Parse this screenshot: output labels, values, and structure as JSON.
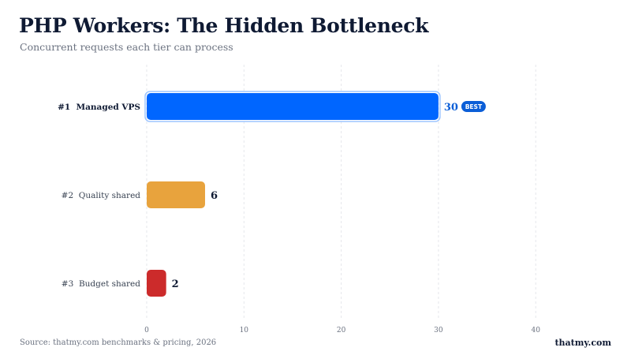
{
  "header": {
    "title": "PHP Workers: The Hidden Bottleneck",
    "subtitle": "Concurrent requests each tier can process"
  },
  "footer": {
    "source": "Source: thatmy.com benchmarks & pricing, 2026",
    "brand": "thatmy.com"
  },
  "colors": {
    "managed_vps": "#0066ff",
    "quality_shared": "#e8a33d",
    "budget_shared": "#cc2b2b",
    "badge_bg": "#0b5ed7",
    "grid": "#e5e7eb",
    "highlight_value": "#0b5ed7"
  },
  "chart_data": {
    "type": "bar",
    "orientation": "horizontal",
    "categories": [
      "Managed VPS",
      "Quality shared",
      "Budget shared"
    ],
    "ranks": [
      "#1",
      "#2",
      "#3"
    ],
    "values": [
      30,
      6,
      2
    ],
    "value_labels": [
      "30",
      "6",
      "2"
    ],
    "badge": {
      "category": "Managed VPS",
      "text": "BEST"
    },
    "xlim": [
      0,
      40
    ],
    "xticks": [
      "0",
      "10",
      "20",
      "30",
      "40"
    ],
    "grid": true,
    "title": "PHP Workers: The Hidden Bottleneck",
    "subtitle": "Concurrent requests each tier can process",
    "xlabel": "",
    "ylabel": ""
  }
}
